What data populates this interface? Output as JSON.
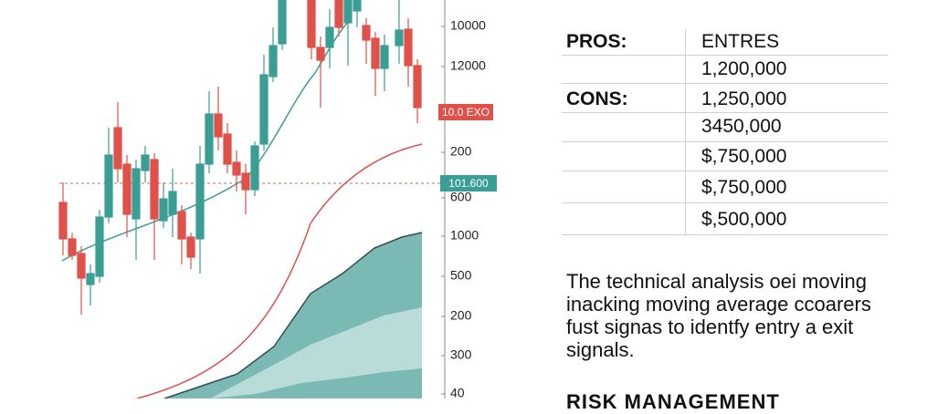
{
  "axis_labels": [
    "10000",
    "12000",
    "200",
    "600",
    "1000",
    "500",
    "200",
    "300",
    "40"
  ],
  "price_tags": [
    "10.0 EXO",
    "101.600"
  ],
  "table": {
    "left": [
      "PROS:",
      "CONS:"
    ],
    "right": [
      "ENTRES",
      "1,200,000",
      "1,250,000",
      "3450,000",
      "$,750,000",
      "$,750,000",
      "$,500,000"
    ]
  },
  "paragraph": [
    "The technical analysis oei moving",
    "inacking moving average ccoarers",
    "fust signas to identfy entry a exit",
    "signals."
  ],
  "heading": "RISK MANAGEMENT"
}
